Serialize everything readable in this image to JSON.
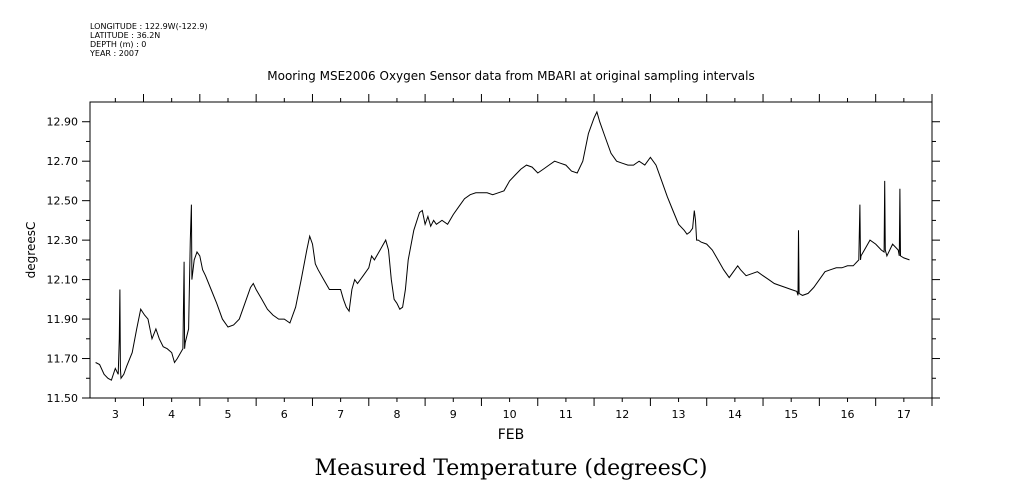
{
  "meta": {
    "longitude": "LONGITUDE : 122.9W(-122.9)",
    "latitude": "LATITUDE : 36.2N",
    "depth": "DEPTH (m) : 0",
    "year": "YEAR : 2007"
  },
  "caption": "Measured Temperature (degreesC)",
  "chart_data": {
    "type": "line",
    "title": "Mooring MSE2006 Oxygen Sensor data from MBARI at original sampling intervals",
    "xlabel": "FEB",
    "ylabel": "degreesC",
    "xlim": [
      2.55,
      17.5
    ],
    "ylim": [
      11.5,
      13.0
    ],
    "x_ticks": [
      3,
      4,
      5,
      6,
      7,
      8,
      9,
      10,
      11,
      12,
      13,
      14,
      15,
      16,
      17
    ],
    "y_ticks": [
      11.5,
      11.7,
      11.9,
      12.1,
      12.3,
      12.5,
      12.7,
      12.9
    ],
    "y_tick_labels": [
      "11.50",
      "11.70",
      "11.90",
      "12.10",
      "12.30",
      "12.50",
      "12.70",
      "12.90"
    ],
    "grid": false,
    "series": [
      {
        "color": "#000000",
        "x": [
          2.65,
          2.72,
          2.8,
          2.87,
          2.93,
          3.0,
          3.05,
          3.07,
          3.08,
          3.09,
          3.1,
          3.15,
          3.2,
          3.3,
          3.38,
          3.45,
          3.52,
          3.58,
          3.65,
          3.72,
          3.78,
          3.85,
          3.92,
          4.0,
          4.05,
          4.1,
          4.2,
          4.22,
          4.23,
          4.24,
          4.3,
          4.33,
          4.35,
          4.36,
          4.4,
          4.45,
          4.5,
          4.55,
          4.6,
          4.7,
          4.8,
          4.9,
          5.0,
          5.1,
          5.2,
          5.3,
          5.4,
          5.45,
          5.5,
          5.6,
          5.7,
          5.8,
          5.9,
          6.0,
          6.1,
          6.2,
          6.3,
          6.4,
          6.45,
          6.5,
          6.55,
          6.6,
          6.7,
          6.8,
          6.9,
          7.0,
          7.05,
          7.1,
          7.15,
          7.2,
          7.25,
          7.3,
          7.4,
          7.5,
          7.55,
          7.6,
          7.7,
          7.8,
          7.85,
          7.9,
          7.95,
          8.0,
          8.05,
          8.1,
          8.15,
          8.2,
          8.3,
          8.4,
          8.45,
          8.5,
          8.55,
          8.6,
          8.65,
          8.7,
          8.8,
          8.9,
          9.0,
          9.1,
          9.2,
          9.3,
          9.4,
          9.5,
          9.6,
          9.7,
          9.8,
          9.9,
          10.0,
          10.1,
          10.2,
          10.3,
          10.4,
          10.5,
          10.6,
          10.7,
          10.8,
          10.9,
          11.0,
          11.1,
          11.2,
          11.3,
          11.4,
          11.5,
          11.55,
          11.6,
          11.7,
          11.8,
          11.9,
          12.0,
          12.1,
          12.2,
          12.3,
          12.4,
          12.5,
          12.6,
          12.7,
          12.8,
          12.9,
          13.0,
          13.1,
          13.15,
          13.2,
          13.25,
          13.28,
          13.3,
          13.32,
          13.35,
          13.4,
          13.5,
          13.6,
          13.7,
          13.8,
          13.9,
          14.0,
          14.05,
          14.1,
          14.2,
          14.3,
          14.4,
          14.5,
          14.6,
          14.7,
          14.8,
          14.9,
          15.0,
          15.1,
          15.12,
          15.13,
          15.14,
          15.2,
          15.3,
          15.4,
          15.5,
          15.6,
          15.7,
          15.8,
          15.9,
          16.0,
          16.1,
          16.2,
          16.22,
          16.23,
          16.24,
          16.3,
          16.4,
          16.5,
          16.6,
          16.65,
          16.66,
          16.67,
          16.7,
          16.8,
          16.9,
          16.92,
          16.93,
          16.94,
          17.0,
          17.1
        ],
        "values": [
          11.68,
          11.67,
          11.62,
          11.6,
          11.59,
          11.65,
          11.62,
          11.8,
          12.05,
          11.65,
          11.6,
          11.62,
          11.66,
          11.73,
          11.85,
          11.95,
          11.92,
          11.9,
          11.8,
          11.85,
          11.8,
          11.76,
          11.75,
          11.73,
          11.68,
          11.7,
          11.75,
          12.19,
          11.75,
          11.78,
          11.85,
          12.3,
          12.48,
          12.1,
          12.2,
          12.24,
          12.22,
          12.15,
          12.12,
          12.05,
          11.98,
          11.9,
          11.86,
          11.87,
          11.9,
          11.98,
          12.06,
          12.08,
          12.05,
          12.0,
          11.95,
          11.92,
          11.9,
          11.9,
          11.88,
          11.96,
          12.1,
          12.25,
          12.32,
          12.28,
          12.18,
          12.15,
          12.1,
          12.05,
          12.05,
          12.05,
          12.0,
          11.96,
          11.94,
          12.05,
          12.1,
          12.08,
          12.12,
          12.16,
          12.22,
          12.2,
          12.25,
          12.3,
          12.25,
          12.1,
          12.0,
          11.98,
          11.95,
          11.96,
          12.05,
          12.2,
          12.35,
          12.44,
          12.45,
          12.38,
          12.42,
          12.37,
          12.4,
          12.38,
          12.4,
          12.38,
          12.43,
          12.47,
          12.51,
          12.53,
          12.54,
          12.54,
          12.54,
          12.53,
          12.54,
          12.55,
          12.6,
          12.63,
          12.66,
          12.68,
          12.67,
          12.64,
          12.66,
          12.68,
          12.7,
          12.69,
          12.68,
          12.65,
          12.64,
          12.7,
          12.84,
          12.92,
          12.95,
          12.9,
          12.82,
          12.74,
          12.7,
          12.69,
          12.68,
          12.68,
          12.7,
          12.68,
          12.72,
          12.68,
          12.6,
          12.52,
          12.45,
          12.38,
          12.35,
          12.33,
          12.34,
          12.36,
          12.45,
          12.4,
          12.3,
          12.3,
          12.29,
          12.28,
          12.25,
          12.2,
          12.15,
          12.11,
          12.15,
          12.17,
          12.15,
          12.12,
          12.13,
          12.14,
          12.12,
          12.1,
          12.08,
          12.07,
          12.06,
          12.05,
          12.04,
          12.02,
          12.35,
          12.03,
          12.02,
          12.03,
          12.06,
          12.1,
          12.14,
          12.15,
          12.16,
          12.16,
          12.17,
          12.17,
          12.2,
          12.48,
          12.2,
          12.22,
          12.25,
          12.3,
          12.28,
          12.25,
          12.24,
          12.6,
          12.25,
          12.22,
          12.28,
          12.25,
          12.22,
          12.56,
          12.22,
          12.21,
          12.2
        ]
      }
    ]
  }
}
